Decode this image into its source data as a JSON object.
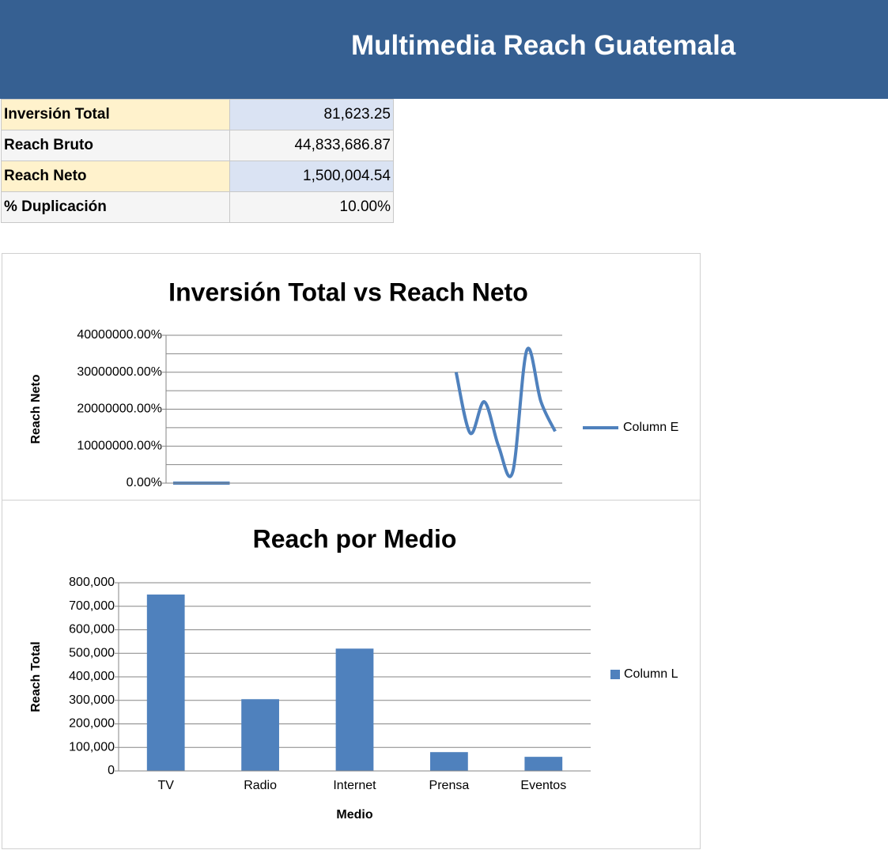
{
  "header": {
    "title": "Multimedia Reach Guatemala"
  },
  "table": {
    "rows": [
      [
        "Inversión Total",
        "81,623.25"
      ],
      [
        "Reach Bruto",
        "44,833,686.87"
      ],
      [
        "Reach Neto",
        "1,500,004.54"
      ],
      [
        "% Duplicación",
        "10.00%"
      ]
    ]
  },
  "chart_data": [
    {
      "type": "line",
      "title": "Inversión Total vs Reach Neto",
      "y_label": "Reach Neto",
      "categories": [
        null,
        null,
        null,
        null,
        null,
        null,
        null,
        null,
        null,
        null,
        null,
        null,
        null,
        null,
        null,
        null,
        null,
        null,
        null,
        null,
        null,
        null,
        null,
        null,
        null,
        null,
        null,
        null
      ],
      "series": [
        {
          "name": "Column E",
          "color": "#4f81bd",
          "values": [
            0,
            0,
            0,
            0,
            0,
            null,
            null,
            null,
            null,
            null,
            null,
            null,
            null,
            null,
            null,
            null,
            null,
            null,
            null,
            null,
            30000000,
            13500000,
            22000000,
            10000000,
            3000000,
            36000000,
            22000000,
            14000000
          ]
        }
      ],
      "ylim": [
        0,
        40000000
      ],
      "yticks": [
        {
          "value": 0,
          "label": "0.00%"
        },
        {
          "value": 10000000,
          "label": "10000000.00%"
        },
        {
          "value": 20000000,
          "label": "20000000.00%"
        },
        {
          "value": 30000000,
          "label": "30000000.00%"
        },
        {
          "value": 40000000,
          "label": "40000000.00%"
        }
      ],
      "grid": true,
      "minor_grid": true,
      "smooth": true,
      "legend": "right"
    },
    {
      "type": "bar",
      "title": "Reach por Medio",
      "y_label": "Reach Total",
      "x_label": "Medio",
      "categories": [
        "TV",
        "Radio",
        "Internet",
        "Prensa",
        "Eventos"
      ],
      "series": [
        {
          "name": "Column L",
          "color": "#4f81bd",
          "values": [
            750000,
            305000,
            520000,
            80000,
            60000
          ]
        }
      ],
      "ylim": [
        0,
        800000
      ],
      "yticks": [
        0,
        {
          "value": 100000,
          "label": "100,000"
        },
        {
          "value": 200000,
          "label": "200,000"
        },
        {
          "value": 300000,
          "label": "300,000"
        },
        {
          "value": 400000,
          "label": "400,000"
        },
        {
          "value": 500000,
          "label": "500,000"
        },
        {
          "value": 600000,
          "label": "600,000"
        },
        {
          "value": 700000,
          "label": "700,000"
        },
        {
          "value": 800000,
          "label": "800,000"
        }
      ],
      "grid": true,
      "legend": "right"
    }
  ]
}
